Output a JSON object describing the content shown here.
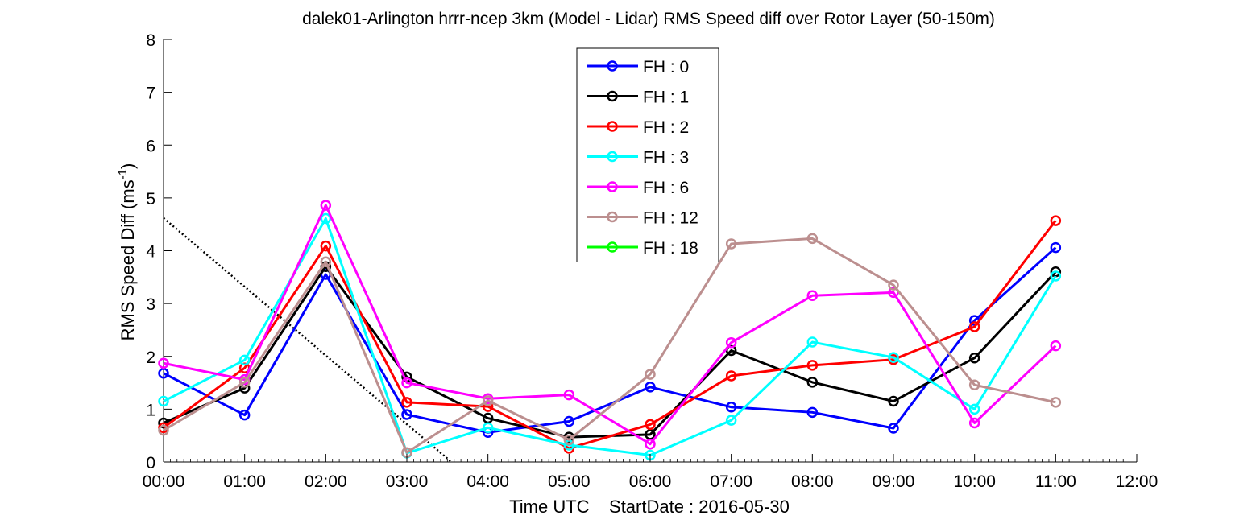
{
  "chart_data": {
    "type": "line",
    "title": "dalek01-Arlington hrrr-ncep 3km (Model - Lidar) RMS Speed diff over Rotor Layer (50-150m)",
    "xlabel": "Time UTC    StartDate : 2016-05-30",
    "ylabel": {
      "text": "RMS Speed Diff (ms",
      "sup": "-1",
      "close": ")"
    },
    "x_tick_labels": [
      "00:00",
      "01:00",
      "02:00",
      "03:00",
      "04:00",
      "05:00",
      "06:00",
      "07:00",
      "08:00",
      "09:00",
      "10:00",
      "11:00",
      "12:00"
    ],
    "y_tick_labels": [
      "0",
      "1",
      "2",
      "3",
      "4",
      "5",
      "6",
      "7",
      "8"
    ],
    "xlim": [
      0,
      12
    ],
    "ylim": [
      0,
      8
    ],
    "grid": false,
    "legend_position": "top-center",
    "series": [
      {
        "name": "FH : 0",
        "color": "#0000ff",
        "values": [
          1.68,
          0.89,
          3.55,
          0.9,
          0.56,
          0.77,
          1.42,
          1.04,
          0.94,
          0.64,
          2.68,
          4.06
        ]
      },
      {
        "name": "FH : 1",
        "color": "#000000",
        "values": [
          0.74,
          1.4,
          3.7,
          1.61,
          0.83,
          0.47,
          0.52,
          2.11,
          1.51,
          1.15,
          1.97,
          3.6
        ]
      },
      {
        "name": "FH : 2",
        "color": "#ff0000",
        "values": [
          0.65,
          1.78,
          4.09,
          1.13,
          1.05,
          0.26,
          0.71,
          1.63,
          1.83,
          1.94,
          2.56,
          4.57
        ]
      },
      {
        "name": "FH : 3",
        "color": "#00ffff",
        "values": [
          1.15,
          1.93,
          4.61,
          0.17,
          0.65,
          0.32,
          0.13,
          0.79,
          2.27,
          1.98,
          1.0,
          3.52
        ]
      },
      {
        "name": "FH : 6",
        "color": "#ff00ff",
        "values": [
          1.87,
          1.56,
          4.86,
          1.5,
          1.2,
          1.27,
          0.34,
          2.26,
          3.15,
          3.21,
          0.74,
          2.2
        ]
      },
      {
        "name": "FH : 12",
        "color": "#bc8f8f",
        "values": [
          0.6,
          1.51,
          3.79,
          0.18,
          1.16,
          0.42,
          1.66,
          4.13,
          4.23,
          3.35,
          1.46,
          1.13
        ]
      },
      {
        "name": "FH : 18",
        "color": "#00ff00",
        "values": []
      }
    ],
    "reference_line": {
      "style": "dotted",
      "color": "#000000",
      "x": [
        0,
        3.55
      ],
      "y": [
        4.62,
        0
      ]
    }
  }
}
